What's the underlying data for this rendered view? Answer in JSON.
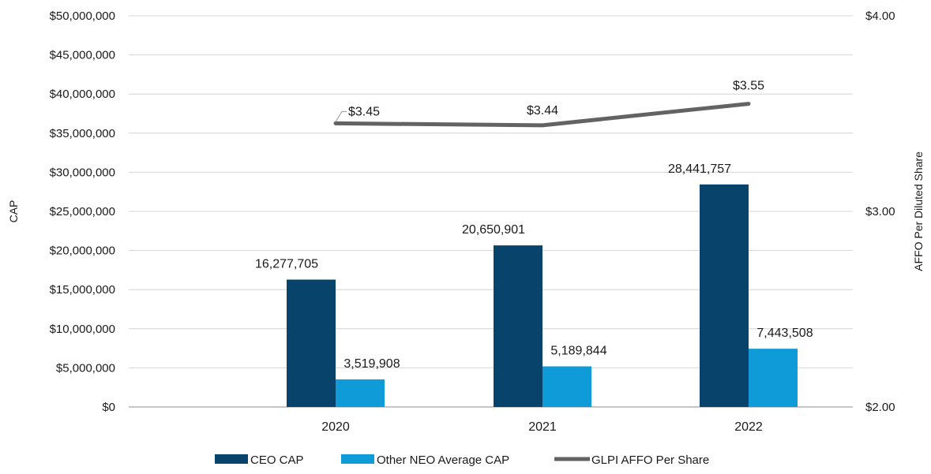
{
  "chart_data": {
    "type": "bar",
    "title": "",
    "categories": [
      "2020",
      "2021",
      "2022"
    ],
    "series": [
      {
        "name": "CEO CAP",
        "type": "bar",
        "axis": "left",
        "color": "#07436a",
        "values": [
          16277705,
          20650901,
          28441757
        ],
        "labels": [
          "16,277,705",
          "20,650,901",
          "28,441,757"
        ]
      },
      {
        "name": "Other NEO Average CAP",
        "type": "bar",
        "axis": "left",
        "color": "#0f9ad8",
        "values": [
          3519908,
          5189844,
          7443508
        ],
        "labels": [
          "3,519,908",
          "5,189,844",
          "7,443,508"
        ]
      },
      {
        "name": "GLPI AFFO Per Share",
        "type": "line",
        "axis": "right",
        "color": "#636363",
        "values": [
          3.45,
          3.44,
          3.55
        ],
        "labels": [
          "$3.45",
          "$3.44",
          "$3.55"
        ]
      }
    ],
    "ylabel": "CAP",
    "y2label": "AFFO Per Diluted Share",
    "ylim": [
      0,
      50000000
    ],
    "y2lim": [
      2.0,
      4.0
    ],
    "yticks": [
      "$0",
      "$5,000,000",
      "$10,000,000",
      "$15,000,000",
      "$20,000,000",
      "$25,000,000",
      "$30,000,000",
      "$35,000,000",
      "$40,000,000",
      "$45,000,000",
      "$50,000,000"
    ],
    "y2ticks": [
      "$2.00",
      "$3.00",
      "$4.00"
    ],
    "grid": true,
    "legend_position": "bottom"
  }
}
